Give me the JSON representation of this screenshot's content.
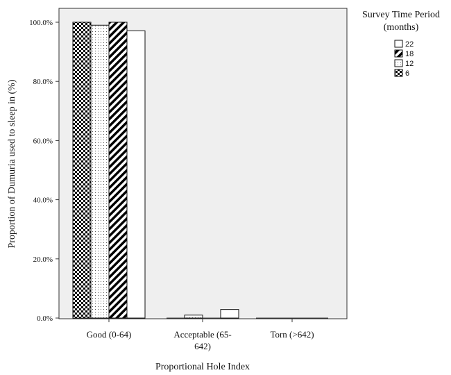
{
  "chart_data": {
    "type": "bar",
    "title": "",
    "xlabel": "Proportional Hole Index",
    "ylabel": "Proportion of Dumuria used to sleep in (%)",
    "categories": [
      [
        "Good (0-64)"
      ],
      [
        "Acceptable (65-",
        "642)"
      ],
      [
        "Torn (>642)"
      ]
    ],
    "yticks": [
      "0.0%",
      "20.0%",
      "40.0%",
      "60.0%",
      "80.0%",
      "100.0%"
    ],
    "ylim": [
      0,
      100
    ],
    "grid": false,
    "legend": {
      "title": [
        "Survey Time Period",
        "(months)"
      ],
      "placement": "right",
      "entries": [
        "22",
        "18",
        "12",
        "6"
      ]
    },
    "series": [
      {
        "name": "6",
        "pattern": "checker",
        "values": [
          100.0,
          0.0,
          0.0
        ]
      },
      {
        "name": "12",
        "pattern": "dots",
        "values": [
          99.0,
          1.0,
          0.0
        ]
      },
      {
        "name": "18",
        "pattern": "diagonal",
        "values": [
          100.0,
          0.0,
          0.0
        ]
      },
      {
        "name": "22",
        "pattern": "white",
        "values": [
          97.1,
          2.9,
          0.0
        ]
      }
    ],
    "plot_background": "#efefef"
  }
}
